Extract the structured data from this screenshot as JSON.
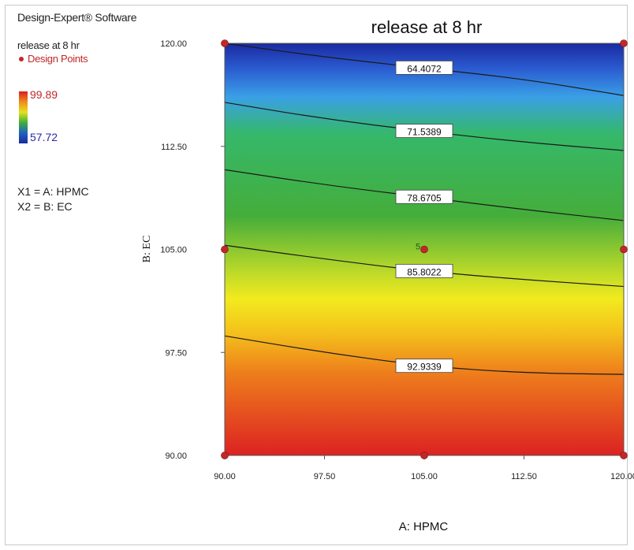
{
  "software": "Design-Expert® Software",
  "legend": {
    "response": "release at 8 hr",
    "design_points_label": "Design Points",
    "max_label": "99.89",
    "min_label": "57.72",
    "factor_x": "X1 = A: HPMC",
    "factor_y": "X2 = B: EC"
  },
  "colors": {
    "high": "#d62020",
    "mid_high": "#f0a81c",
    "mid": "#e8e41c",
    "mid_low": "#3fae3a",
    "low": "#1a2a9e",
    "design_point": "#c0282a"
  },
  "chart_data": {
    "type": "contour",
    "title": "release at 8 hr",
    "xlabel": "A: HPMC",
    "ylabel": "B: EC",
    "xlim": [
      90,
      120
    ],
    "ylim": [
      90,
      120
    ],
    "x_ticks": [
      "90.00",
      "97.50",
      "105.00",
      "112.50",
      "120.00"
    ],
    "y_ticks": [
      "90.00",
      "97.50",
      "105.00",
      "112.50",
      "120.00"
    ],
    "response_range": [
      57.72,
      99.89
    ],
    "contours": [
      {
        "level": "64.4072",
        "points": [
          [
            90,
            120
          ],
          [
            97.5,
            119.0
          ],
          [
            105,
            118.2
          ],
          [
            112.5,
            117.4
          ],
          [
            120,
            116.2
          ]
        ]
      },
      {
        "level": "71.5389",
        "points": [
          [
            90,
            115.7
          ],
          [
            97.5,
            114.5
          ],
          [
            105,
            113.6
          ],
          [
            112.5,
            112.8
          ],
          [
            120,
            112.2
          ]
        ]
      },
      {
        "level": "78.6705",
        "points": [
          [
            90,
            110.8
          ],
          [
            97.5,
            109.7
          ],
          [
            105,
            108.8
          ],
          [
            112.5,
            107.9
          ],
          [
            120,
            107.1
          ]
        ]
      },
      {
        "level": "85.8022",
        "points": [
          [
            90,
            105.3
          ],
          [
            97.5,
            104.3
          ],
          [
            105,
            103.4
          ],
          [
            112.5,
            102.8
          ],
          [
            120,
            102.3
          ]
        ]
      },
      {
        "level": "92.9339",
        "points": [
          [
            90,
            98.7
          ],
          [
            97.5,
            97.5
          ],
          [
            105,
            96.5
          ],
          [
            112.5,
            96.0
          ],
          [
            120,
            95.9
          ]
        ]
      }
    ],
    "contour_label_x": 105,
    "design_points": [
      {
        "x": 90,
        "y": 120,
        "label": ""
      },
      {
        "x": 120,
        "y": 120,
        "label": ""
      },
      {
        "x": 90,
        "y": 105,
        "label": ""
      },
      {
        "x": 105,
        "y": 105,
        "label": "5"
      },
      {
        "x": 120,
        "y": 105,
        "label": ""
      },
      {
        "x": 90,
        "y": 90,
        "label": ""
      },
      {
        "x": 105,
        "y": 90,
        "label": ""
      },
      {
        "x": 120,
        "y": 90,
        "label": ""
      }
    ]
  }
}
